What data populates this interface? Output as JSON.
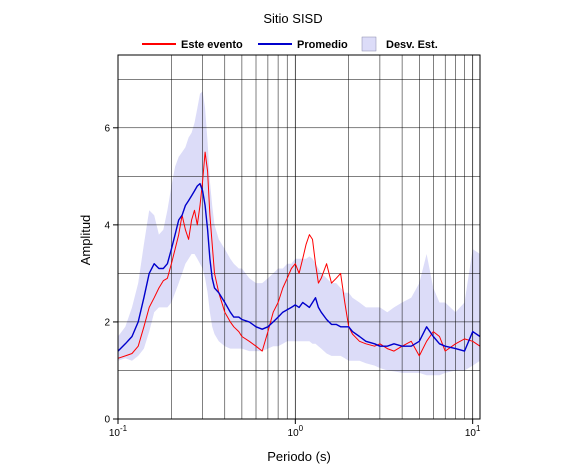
{
  "chart_data": {
    "type": "line",
    "title": "Sitio SISD",
    "xlabel": "Periodo (s)",
    "ylabel": "Amplitud",
    "xscale": "log",
    "xlim": [
      0.1,
      11
    ],
    "ylim": [
      0,
      7.5
    ],
    "grid": true,
    "legend_position": "top",
    "x_ticks": [
      {
        "value": 0.1,
        "base": "10",
        "exp": "-1"
      },
      {
        "value": 1,
        "base": "10",
        "exp": "0"
      },
      {
        "value": 10,
        "base": "10",
        "exp": "1"
      }
    ],
    "y_ticks": [
      0,
      2,
      4,
      6
    ],
    "legend": [
      {
        "label": "Este evento",
        "kind": "line",
        "color": "#ff0000"
      },
      {
        "label": "Promedio",
        "kind": "line",
        "color": "#0000cc"
      },
      {
        "label": "Desv. Est.",
        "kind": "band",
        "color": "#dcdcf8"
      }
    ],
    "series": [
      {
        "name": "Este evento",
        "color": "#ff0000",
        "x": [
          0.1,
          0.11,
          0.12,
          0.13,
          0.14,
          0.15,
          0.16,
          0.17,
          0.18,
          0.19,
          0.2,
          0.21,
          0.22,
          0.23,
          0.24,
          0.25,
          0.26,
          0.27,
          0.28,
          0.29,
          0.3,
          0.31,
          0.32,
          0.33,
          0.34,
          0.35,
          0.37,
          0.4,
          0.43,
          0.45,
          0.48,
          0.5,
          0.55,
          0.6,
          0.65,
          0.7,
          0.75,
          0.8,
          0.85,
          0.9,
          0.95,
          1.0,
          1.05,
          1.1,
          1.15,
          1.2,
          1.25,
          1.3,
          1.35,
          1.4,
          1.5,
          1.6,
          1.7,
          1.8,
          1.9,
          2.0,
          2.1,
          2.3,
          2.5,
          2.8,
          3.0,
          3.3,
          3.6,
          4.0,
          4.5,
          5.0,
          5.5,
          6.0,
          6.5,
          7.0,
          8.0,
          9.0,
          10.0,
          11.0
        ],
        "values": [
          1.25,
          1.3,
          1.35,
          1.5,
          1.9,
          2.3,
          2.5,
          2.7,
          2.85,
          2.9,
          3.2,
          3.5,
          3.8,
          4.2,
          3.9,
          3.7,
          4.1,
          4.3,
          4.0,
          4.4,
          4.9,
          5.5,
          5.1,
          4.2,
          3.6,
          3.0,
          2.6,
          2.2,
          2.0,
          1.9,
          1.8,
          1.7,
          1.6,
          1.5,
          1.4,
          1.8,
          2.2,
          2.4,
          2.7,
          2.9,
          3.1,
          3.2,
          3.0,
          3.3,
          3.6,
          3.8,
          3.7,
          3.2,
          2.8,
          2.9,
          3.2,
          2.8,
          2.9,
          3.0,
          2.4,
          1.9,
          1.75,
          1.6,
          1.55,
          1.5,
          1.55,
          1.45,
          1.4,
          1.5,
          1.6,
          1.3,
          1.6,
          1.8,
          1.7,
          1.4,
          1.55,
          1.65,
          1.6,
          1.5
        ]
      },
      {
        "name": "Promedio",
        "color": "#0000cc",
        "x": [
          0.1,
          0.11,
          0.12,
          0.13,
          0.14,
          0.15,
          0.16,
          0.17,
          0.18,
          0.19,
          0.2,
          0.21,
          0.22,
          0.23,
          0.24,
          0.25,
          0.26,
          0.27,
          0.28,
          0.29,
          0.3,
          0.31,
          0.32,
          0.33,
          0.34,
          0.35,
          0.37,
          0.4,
          0.43,
          0.45,
          0.48,
          0.5,
          0.55,
          0.6,
          0.65,
          0.7,
          0.75,
          0.8,
          0.85,
          0.9,
          0.95,
          1.0,
          1.05,
          1.1,
          1.15,
          1.2,
          1.25,
          1.3,
          1.35,
          1.4,
          1.5,
          1.6,
          1.7,
          1.8,
          1.9,
          2.0,
          2.1,
          2.3,
          2.5,
          2.8,
          3.0,
          3.3,
          3.6,
          4.0,
          4.5,
          5.0,
          5.5,
          6.0,
          6.5,
          7.0,
          8.0,
          9.0,
          10.0,
          11.0
        ],
        "values": [
          1.4,
          1.55,
          1.7,
          2.0,
          2.5,
          3.0,
          3.2,
          3.1,
          3.1,
          3.2,
          3.5,
          3.8,
          4.1,
          4.2,
          4.4,
          4.5,
          4.6,
          4.7,
          4.8,
          4.85,
          4.7,
          4.4,
          3.9,
          3.3,
          2.9,
          2.7,
          2.6,
          2.4,
          2.2,
          2.1,
          2.1,
          2.05,
          2.0,
          1.9,
          1.85,
          1.9,
          2.0,
          2.1,
          2.2,
          2.25,
          2.3,
          2.35,
          2.3,
          2.4,
          2.35,
          2.3,
          2.4,
          2.5,
          2.3,
          2.2,
          2.05,
          1.95,
          1.95,
          1.9,
          1.9,
          1.9,
          1.8,
          1.7,
          1.6,
          1.55,
          1.5,
          1.5,
          1.55,
          1.5,
          1.5,
          1.6,
          1.9,
          1.7,
          1.55,
          1.5,
          1.45,
          1.4,
          1.8,
          1.7
        ]
      }
    ],
    "band": {
      "name": "Desv. Est.",
      "color": "#dcdcf8",
      "x": [
        0.1,
        0.11,
        0.12,
        0.13,
        0.14,
        0.15,
        0.16,
        0.17,
        0.18,
        0.19,
        0.2,
        0.21,
        0.22,
        0.23,
        0.24,
        0.25,
        0.26,
        0.27,
        0.28,
        0.29,
        0.3,
        0.31,
        0.32,
        0.33,
        0.34,
        0.35,
        0.37,
        0.4,
        0.43,
        0.45,
        0.48,
        0.5,
        0.55,
        0.6,
        0.65,
        0.7,
        0.75,
        0.8,
        0.85,
        0.9,
        0.95,
        1.0,
        1.05,
        1.1,
        1.15,
        1.2,
        1.25,
        1.3,
        1.35,
        1.4,
        1.5,
        1.6,
        1.7,
        1.8,
        1.9,
        2.0,
        2.1,
        2.3,
        2.5,
        2.8,
        3.0,
        3.3,
        3.6,
        4.0,
        4.5,
        5.0,
        5.5,
        6.0,
        6.5,
        7.0,
        8.0,
        9.0,
        10.0,
        11.0
      ],
      "upper": [
        1.7,
        1.9,
        2.3,
        2.8,
        3.6,
        4.3,
        4.2,
        3.8,
        3.9,
        4.3,
        4.8,
        5.2,
        5.4,
        5.5,
        5.6,
        5.8,
        5.9,
        6.1,
        6.4,
        6.7,
        6.75,
        6.4,
        5.7,
        4.9,
        4.4,
        4.0,
        3.7,
        3.5,
        3.3,
        3.2,
        3.1,
        3.1,
        2.9,
        2.8,
        2.8,
        2.9,
        3.0,
        3.1,
        3.1,
        3.2,
        3.2,
        3.3,
        3.3,
        3.3,
        3.3,
        3.35,
        3.3,
        3.2,
        3.1,
        3.0,
        2.9,
        2.8,
        2.8,
        2.7,
        2.6,
        2.6,
        2.5,
        2.4,
        2.3,
        2.3,
        2.3,
        2.2,
        2.3,
        2.4,
        2.5,
        2.8,
        3.4,
        2.7,
        2.4,
        2.4,
        2.2,
        2.4,
        3.5,
        3.4
      ],
      "lower": [
        1.2,
        1.25,
        1.2,
        1.3,
        1.45,
        1.8,
        2.2,
        2.3,
        2.3,
        2.3,
        2.4,
        2.6,
        2.8,
        3.0,
        3.2,
        3.3,
        3.4,
        3.4,
        3.3,
        3.2,
        3.1,
        2.9,
        2.6,
        2.2,
        1.9,
        1.75,
        1.6,
        1.5,
        1.45,
        1.45,
        1.45,
        1.45,
        1.4,
        1.4,
        1.4,
        1.45,
        1.5,
        1.5,
        1.55,
        1.6,
        1.6,
        1.6,
        1.6,
        1.6,
        1.6,
        1.6,
        1.55,
        1.55,
        1.5,
        1.45,
        1.35,
        1.3,
        1.3,
        1.3,
        1.25,
        1.2,
        1.2,
        1.2,
        1.15,
        1.1,
        1.05,
        1.0,
        0.98,
        0.95,
        0.95,
        0.95,
        0.9,
        0.9,
        0.9,
        0.95,
        1.0,
        1.0,
        1.1,
        1.2
      ]
    }
  }
}
